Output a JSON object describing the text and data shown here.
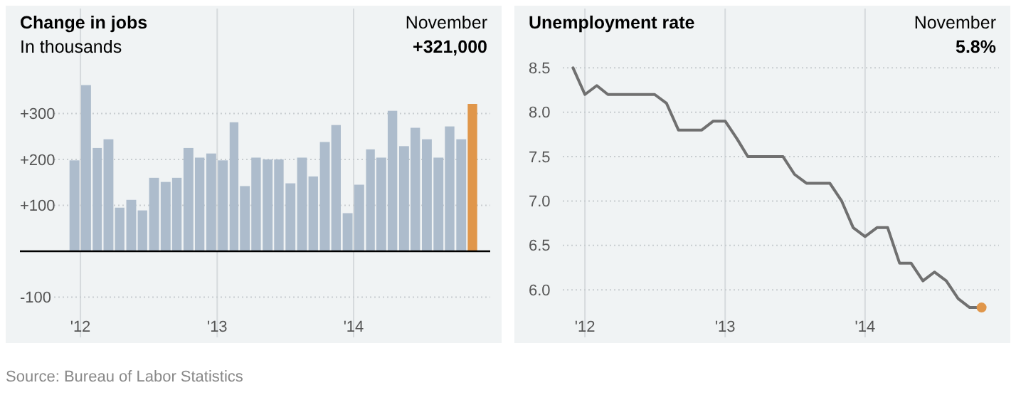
{
  "chart_data": [
    {
      "type": "bar",
      "title": "Change in jobs",
      "subtitle": "In thousands",
      "annotations": [
        "November",
        "+321,000",
        "Source: Bureau of Labor Statistics"
      ],
      "x": [
        "2011-12-16",
        "2012-01-16",
        "2012-02-15",
        "2012-03-16",
        "2012-04-15",
        "2012-05-16",
        "2012-06-15",
        "2012-07-16",
        "2012-08-16",
        "2012-09-15",
        "2012-10-16",
        "2012-11-15",
        "2012-12-16",
        "2013-01-16",
        "2013-02-15",
        "2013-03-16",
        "2013-04-15",
        "2013-05-16",
        "2013-06-15",
        "2013-07-16",
        "2013-08-16",
        "2013-09-15",
        "2013-10-16",
        "2013-11-15",
        "2013-12-16",
        "2014-01-16",
        "2014-02-15",
        "2014-03-16",
        "2014-04-15",
        "2014-05-16",
        "2014-06-15",
        "2014-07-16",
        "2014-08-16",
        "2014-09-15",
        "2014-10-16",
        "2014-11-15"
      ],
      "values": [
        198,
        362,
        225,
        244,
        95,
        112,
        89,
        160,
        151,
        160,
        225,
        204,
        213,
        198,
        281,
        142,
        204,
        200,
        200,
        148,
        204,
        163,
        238,
        275,
        83,
        145,
        222,
        204,
        306,
        229,
        269,
        244,
        204,
        272,
        244,
        321
      ],
      "colors": [
        "#adbccc",
        "#adbccc",
        "#adbccc",
        "#adbccc",
        "#adbccc",
        "#adbccc",
        "#adbccc",
        "#adbccc",
        "#adbccc",
        "#adbccc",
        "#adbccc",
        "#adbccc",
        "#adbccc",
        "#adbccc",
        "#adbccc",
        "#adbccc",
        "#adbccc",
        "#adbccc",
        "#adbccc",
        "#adbccc",
        "#adbccc",
        "#adbccc",
        "#adbccc",
        "#adbccc",
        "#adbccc",
        "#adbccc",
        "#adbccc",
        "#adbccc",
        "#adbccc",
        "#adbccc",
        "#adbccc",
        "#adbccc",
        "#adbccc",
        "#adbccc",
        "#adbccc",
        "#e0964a"
      ],
      "xlim": [
        "2011-06-15",
        "2015-02-01"
      ],
      "xticks": [
        {
          "value": "2012-01",
          "label": "'12"
        },
        {
          "value": "2013-01",
          "label": "'13"
        },
        {
          "value": "2014-01",
          "label": "'14"
        }
      ],
      "ylim": [
        -200,
        535
      ],
      "yticks": [
        {
          "value": -100,
          "label": "-100"
        },
        {
          "value": 100,
          "label": "+100"
        },
        {
          "value": 200,
          "label": "+200"
        },
        {
          "value": 300,
          "label": "+300"
        }
      ],
      "grid": true
    },
    {
      "type": "line",
      "title": "Unemployment rate",
      "annotations": [
        "November",
        "5.8%"
      ],
      "x": [
        "2011-12",
        "2012-01",
        "2012-02",
        "2012-03",
        "2012-04",
        "2012-05",
        "2012-06",
        "2012-07",
        "2012-08",
        "2012-09",
        "2012-10",
        "2012-11",
        "2012-12",
        "2013-01",
        "2013-02",
        "2013-03",
        "2013-04",
        "2013-05",
        "2013-06",
        "2013-07",
        "2013-08",
        "2013-09",
        "2013-10",
        "2013-11",
        "2013-12",
        "2014-01",
        "2014-02",
        "2014-03",
        "2014-04",
        "2014-05",
        "2014-06",
        "2014-07",
        "2014-08",
        "2014-09",
        "2014-10",
        "2014-11"
      ],
      "series": [
        {
          "color": "#707070",
          "values": [
            8.5,
            8.2,
            8.3,
            8.2,
            8.2,
            8.2,
            8.2,
            8.2,
            8.1,
            7.8,
            7.8,
            7.8,
            7.9,
            7.9,
            7.7,
            7.5,
            7.5,
            7.5,
            7.5,
            7.3,
            7.2,
            7.2,
            7.2,
            7.0,
            6.7,
            6.6,
            6.7,
            6.7,
            6.3,
            6.3,
            6.1,
            6.2,
            6.1,
            5.9,
            5.8,
            5.8
          ]
        },
        {
          "type": "scatter",
          "color": "#e0964a",
          "x": [
            "2014-11"
          ],
          "values": [
            5.8
          ]
        }
      ],
      "xlim": [
        "2011-07-01",
        "2015-01-15"
      ],
      "xticks": [
        {
          "value": "2012-01",
          "label": "'12"
        },
        {
          "value": "2013-01",
          "label": "'13"
        },
        {
          "value": "2014-01",
          "label": "'14"
        }
      ],
      "ylim": [
        5.4,
        9.2
      ],
      "yticks": [
        {
          "value": 6,
          "label": "6.0"
        },
        6.5,
        {
          "value": 7,
          "label": "7.0"
        },
        7.5,
        {
          "value": 8,
          "label": "8.0"
        },
        8.5
      ],
      "grid": true
    }
  ]
}
